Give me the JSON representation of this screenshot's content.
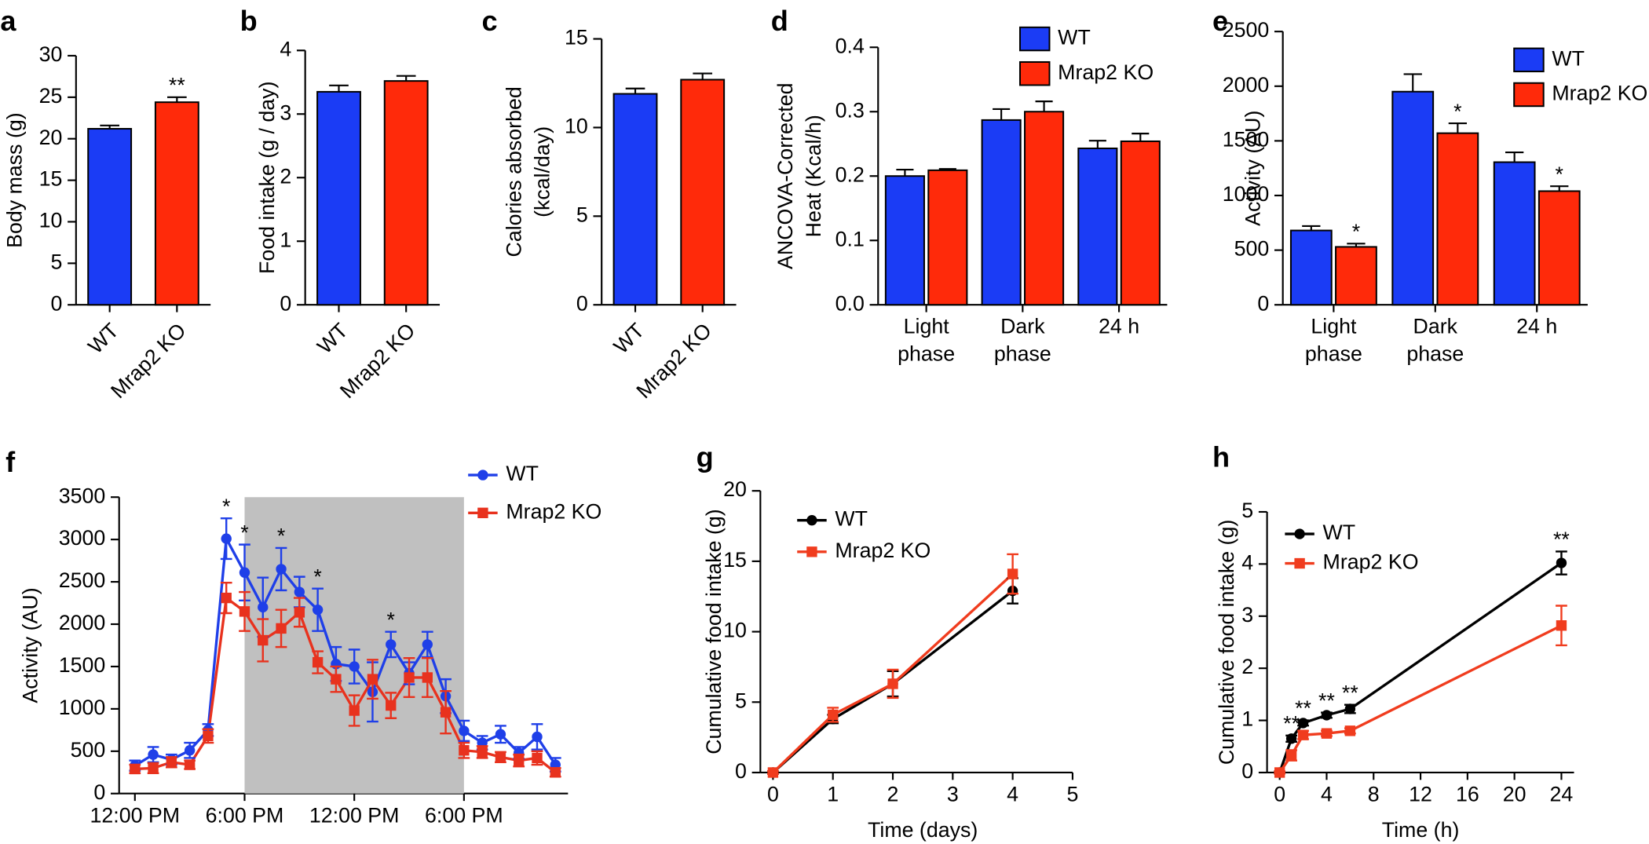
{
  "chart_data": [
    {
      "panel": "a",
      "type": "bar",
      "categories": [
        "WT",
        "Mrap2 KO"
      ],
      "values": [
        21.2,
        24.4
      ],
      "errors": [
        0.4,
        0.6
      ],
      "colors": [
        "#1b3cf5",
        "#ff2a0a"
      ],
      "significance": [
        null,
        "**"
      ],
      "y_label": [
        "Body mass (g)"
      ],
      "ylim": [
        0,
        30
      ],
      "yticks": [
        0,
        5,
        10,
        15,
        20,
        25,
        30
      ],
      "xtick_rotation": 45
    },
    {
      "panel": "b",
      "type": "bar",
      "categories": [
        "WT",
        "Mrap2 KO"
      ],
      "values": [
        3.35,
        3.52
      ],
      "errors": [
        0.1,
        0.08
      ],
      "colors": [
        "#1b3cf5",
        "#ff2a0a"
      ],
      "y_label": [
        "Food intake (g / day)"
      ],
      "ylim": [
        0,
        4
      ],
      "yticks": [
        0,
        1,
        2,
        3,
        4
      ],
      "xtick_rotation": 45
    },
    {
      "panel": "c",
      "type": "bar",
      "categories": [
        "WT",
        "Mrap2 KO"
      ],
      "values": [
        11.9,
        12.7
      ],
      "errors": [
        0.3,
        0.35
      ],
      "colors": [
        "#1b3cf5",
        "#ff2a0a"
      ],
      "y_label": [
        "Calories absorbed",
        "(kcal/day)"
      ],
      "ylim": [
        0,
        15
      ],
      "yticks": [
        0,
        5,
        10,
        15
      ],
      "xtick_rotation": 45
    },
    {
      "panel": "d",
      "type": "bar",
      "categories": [
        [
          "Light",
          "phase"
        ],
        [
          "Dark",
          "phase"
        ],
        [
          "24 h"
        ]
      ],
      "series": [
        {
          "name": "WT",
          "color": "#1b3cf5",
          "values": [
            0.2,
            0.287,
            0.243
          ],
          "errors": [
            0.01,
            0.017,
            0.012
          ]
        },
        {
          "name": "Mrap2 KO",
          "color": "#ff2a0a",
          "values": [
            0.209,
            0.3,
            0.254
          ],
          "errors": [
            0.002,
            0.016,
            0.012
          ]
        }
      ],
      "y_label": [
        "ANCOVA-Corrected",
        "Heat (Kcal/h)"
      ],
      "ylim": [
        0,
        0.4
      ],
      "yticks": [
        {
          "value": 0,
          "label": "0.0"
        },
        0.1,
        0.2,
        0.3,
        0.4
      ],
      "legend": "top-right"
    },
    {
      "panel": "e",
      "type": "bar",
      "categories": [
        [
          "Light",
          "phase"
        ],
        [
          "Dark",
          "phase"
        ],
        [
          "24 h"
        ]
      ],
      "series": [
        {
          "name": "WT",
          "color": "#1b3cf5",
          "values": [
            680,
            1950,
            1305
          ],
          "errors": [
            40,
            160,
            90
          ]
        },
        {
          "name": "Mrap2 KO",
          "color": "#ff2a0a",
          "values": [
            530,
            1570,
            1040
          ],
          "errors": [
            30,
            90,
            45
          ],
          "significance": [
            "*",
            "*",
            "*"
          ]
        }
      ],
      "y_label": [
        "Activity (AU)"
      ],
      "ylim": [
        0,
        2500
      ],
      "yticks": [
        0,
        500,
        1000,
        1500,
        2000,
        2500
      ],
      "legend": "top-right"
    },
    {
      "panel": "f",
      "type": "line",
      "categories": [
        "12:00 PM",
        null,
        null,
        null,
        null,
        null,
        "6:00 PM",
        null,
        null,
        null,
        null,
        null,
        "12:00 PM",
        null,
        null,
        null,
        null,
        null,
        "6:00 PM",
        null,
        null,
        null,
        null,
        null
      ],
      "series": [
        {
          "name": "WT",
          "color": "#1f3fe8",
          "marker": "circle",
          "values": [
            330,
            460,
            400,
            510,
            750,
            3010,
            2610,
            2200,
            2650,
            2380,
            2170,
            1530,
            1500,
            1200,
            1760,
            1420,
            1760,
            1150,
            740,
            600,
            700,
            480,
            670,
            340
          ],
          "errors": [
            60,
            90,
            60,
            90,
            70,
            240,
            330,
            350,
            250,
            180,
            250,
            200,
            200,
            350,
            150,
            130,
            150,
            200,
            120,
            80,
            100,
            70,
            150,
            80
          ],
          "significance": [
            null,
            null,
            null,
            null,
            null,
            "*",
            "*",
            null,
            "*",
            null,
            "*",
            null,
            null,
            null,
            "*",
            null,
            null,
            null,
            null,
            null,
            null,
            null,
            null,
            null
          ]
        },
        {
          "name": "Mrap2 KO",
          "color": "#e8321e",
          "marker": "square",
          "values": [
            290,
            300,
            370,
            340,
            680,
            2310,
            2150,
            1810,
            1950,
            2140,
            1550,
            1350,
            980,
            1350,
            1040,
            1370,
            1370,
            960,
            510,
            490,
            430,
            390,
            420,
            250
          ],
          "errors": [
            50,
            60,
            60,
            50,
            80,
            180,
            230,
            250,
            220,
            170,
            130,
            150,
            180,
            230,
            150,
            230,
            230,
            250,
            90,
            70,
            60,
            70,
            80,
            50
          ]
        }
      ],
      "y_label": [
        "Activity (AU)"
      ],
      "ylim": [
        0,
        3500
      ],
      "yticks": [
        0,
        500,
        1000,
        1500,
        2000,
        2500,
        3000,
        3500
      ],
      "legend": "top-right"
    },
    {
      "panel": "g",
      "type": "line",
      "x": [
        0,
        1,
        2,
        4
      ],
      "series": [
        {
          "name": "WT",
          "color": "#000000",
          "marker": "circle",
          "values": [
            0,
            3.8,
            6.3,
            12.9
          ],
          "errors": [
            0.1,
            0.3,
            0.9,
            0.9
          ]
        },
        {
          "name": "Mrap2 KO",
          "color": "#f03c1e",
          "marker": "square",
          "values": [
            0,
            4.1,
            6.3,
            14.1
          ],
          "errors": [
            0.1,
            0.5,
            1.0,
            1.4
          ]
        }
      ],
      "x_label": "Time (days)",
      "y_label": [
        "Cumulative food intake (g)"
      ],
      "xlim": [
        0,
        5
      ],
      "xticks": [
        0,
        1,
        2,
        3,
        4,
        5
      ],
      "ylim": [
        0,
        20
      ],
      "yticks": [
        0,
        5,
        10,
        15,
        20
      ],
      "legend": "top-left"
    },
    {
      "panel": "h",
      "type": "line",
      "x": [
        0,
        1,
        2,
        4,
        6,
        24
      ],
      "series": [
        {
          "name": "WT",
          "color": "#000000",
          "marker": "circle",
          "values": [
            0,
            0.65,
            0.95,
            1.1,
            1.22,
            4.02
          ],
          "errors": [
            0.02,
            0.06,
            0.05,
            0.05,
            0.08,
            0.22
          ],
          "significance": [
            null,
            "**",
            "**",
            "**",
            "**",
            "**"
          ]
        },
        {
          "name": "Mrap2 KO",
          "color": "#f03c1e",
          "marker": "square",
          "values": [
            0,
            0.33,
            0.72,
            0.75,
            0.8,
            2.82
          ],
          "errors": [
            0.02,
            0.1,
            0.08,
            0.05,
            0.05,
            0.38
          ]
        }
      ],
      "x_label": "Time (h)",
      "y_label": [
        "Cumulative food intake (g)"
      ],
      "xlim": [
        0,
        24
      ],
      "xticks": [
        0,
        4,
        8,
        12,
        16,
        20,
        24
      ],
      "ylim": [
        0,
        5
      ],
      "yticks": [
        0,
        1,
        2,
        3,
        4,
        5
      ],
      "legend": "top-left"
    }
  ]
}
